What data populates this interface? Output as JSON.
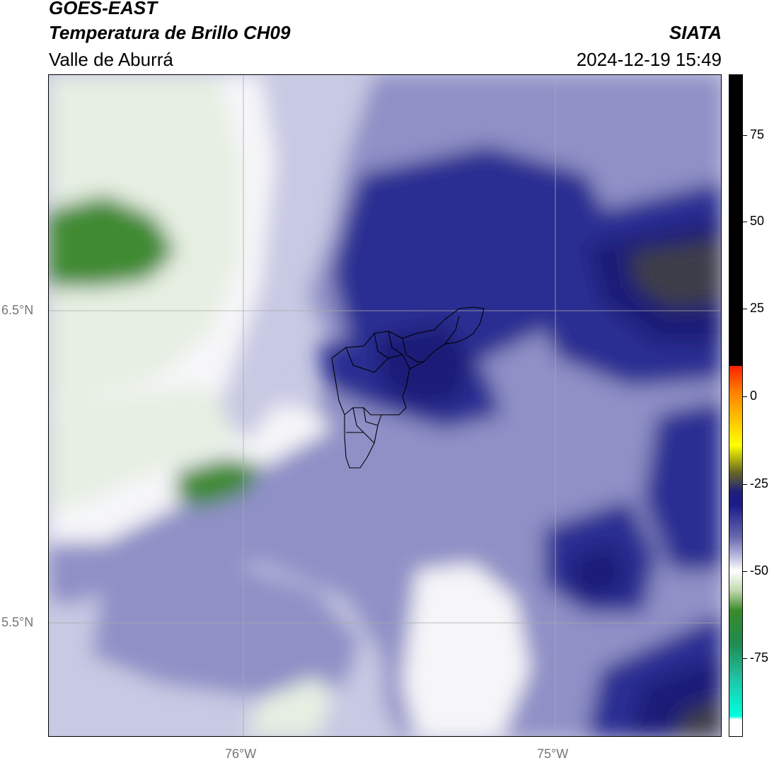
{
  "header": {
    "title1": "GOES-EAST",
    "title2": "Temperatura de Brillo CH09",
    "subtitle": "Valle de Aburrá",
    "org": "SIATA",
    "timestamp": "2024-12-19 15:49"
  },
  "map": {
    "lat_ticks": [
      "6.5°N",
      "5.5°N"
    ],
    "lon_ticks": [
      "76°W",
      "75°W"
    ],
    "colors": {
      "green_dark": "#3f8a30",
      "green_light": "#e6efe2",
      "white": "#f6f6f9",
      "blue_light": "#c8c9e3",
      "blue_mid": "#8f90c6",
      "blue_dark": "#2b2f92",
      "navy": "#1a1c78",
      "gray_dark": "#3d3d4a",
      "grid": "#aaaaaa",
      "boundary": "#000000"
    }
  },
  "colorbar": {
    "tick_labels": [
      "75",
      "50",
      "25",
      "0",
      "-25",
      "-50",
      "-75"
    ],
    "gradient": [
      "#000000",
      "#000000",
      "#000000",
      "#000000",
      "#ff2000",
      "#ff8000",
      "#ffd000",
      "#ffff00",
      "#6a6a20",
      "#20207a",
      "#1a1a8a",
      "#6a6ab0",
      "#c0c0e0",
      "#ffffff",
      "#c0d8b0",
      "#3a8a2a",
      "#208a50",
      "#20c0a0",
      "#00ffe0",
      "#ffffff"
    ]
  }
}
